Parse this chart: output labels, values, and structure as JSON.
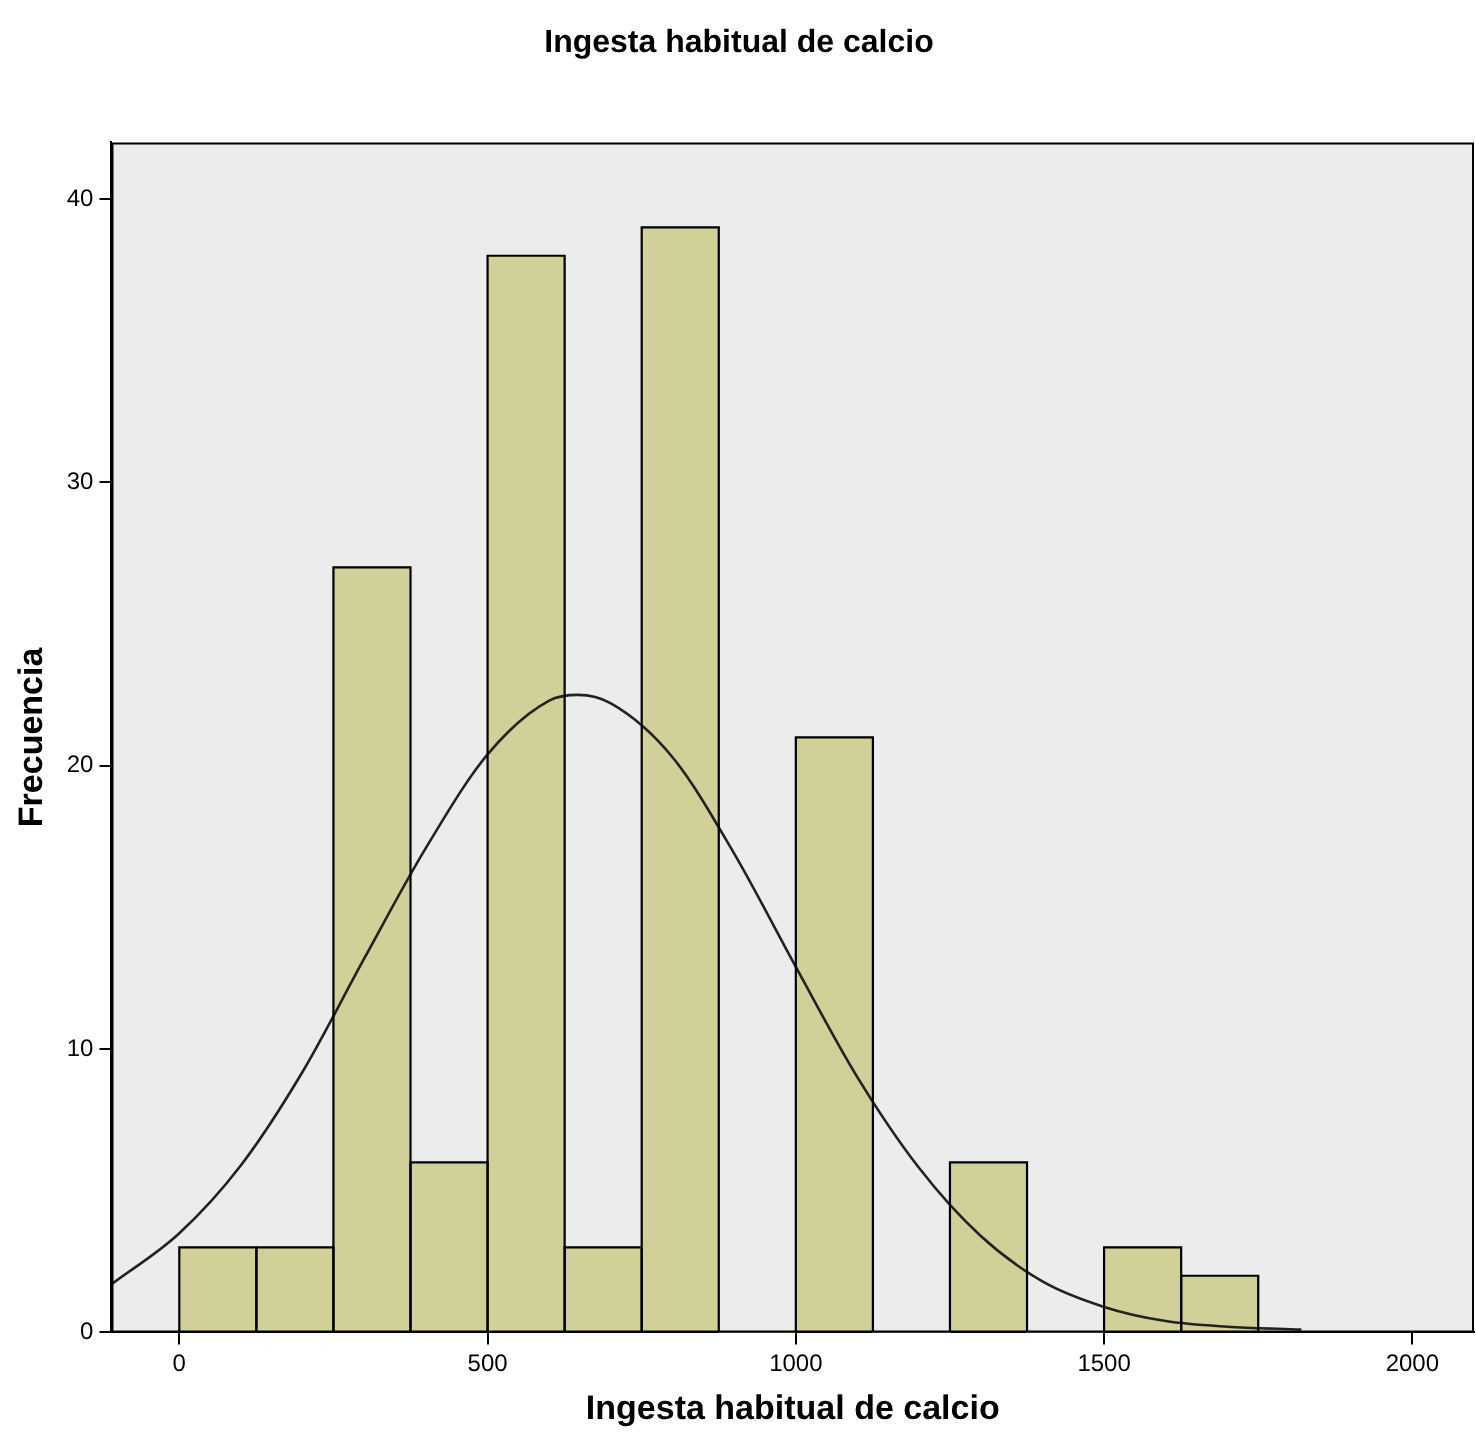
{
  "chart_data": {
    "type": "histogram",
    "title": "Ingesta habitual de calcio",
    "xlabel": "Ingesta habitual de calcio",
    "ylabel": "Frecuencia",
    "xlim": [
      -110,
      2100
    ],
    "xticks": [
      0,
      500,
      1000,
      1500,
      2000
    ],
    "ylim": [
      0,
      42
    ],
    "yticks": [
      0,
      10,
      20,
      30,
      40
    ],
    "grid": false,
    "legend": false,
    "series": [
      {
        "type": "histogram",
        "color": "#d0d098",
        "bins": [
          0,
          125,
          250,
          375,
          500,
          625,
          750,
          875,
          1000,
          1125,
          1250,
          1375,
          1500,
          1625,
          1750
        ],
        "values": [
          3,
          3,
          27,
          6,
          38,
          3,
          39,
          0,
          21,
          0,
          6,
          0,
          3,
          2
        ]
      },
      {
        "type": "line",
        "color": "#222222",
        "marker": "none",
        "x": [
          -110,
          0,
          100,
          200,
          300,
          400,
          500,
          600,
          647,
          700,
          800,
          900,
          1000,
          1100,
          1200,
          1300,
          1400,
          1500,
          1600,
          1700,
          1820
        ],
        "values": [
          1.7,
          3.5,
          5.9,
          9.2,
          13.2,
          17.1,
          20.4,
          22.3,
          22.5,
          22.2,
          20.3,
          16.9,
          12.9,
          9.0,
          5.8,
          3.4,
          1.8,
          0.9,
          0.4,
          0.2,
          0.1
        ]
      }
    ]
  }
}
